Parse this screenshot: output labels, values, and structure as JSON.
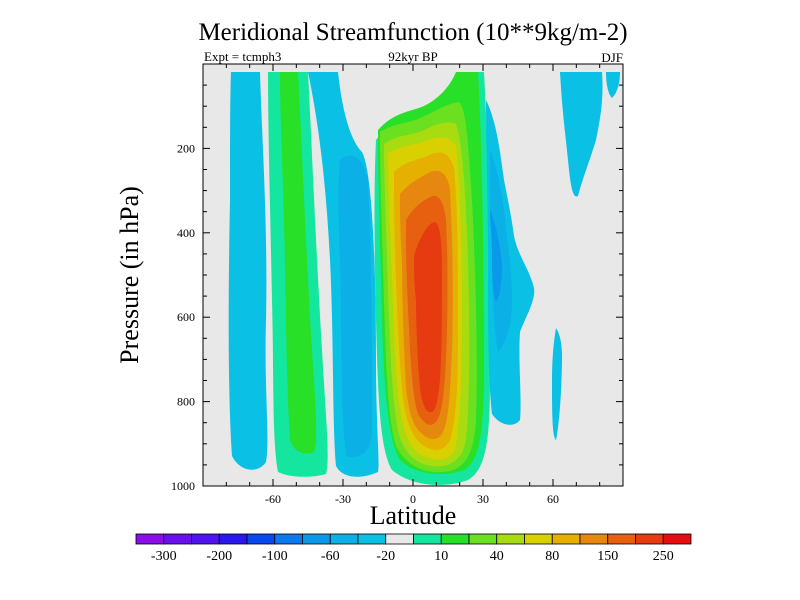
{
  "chart_data": {
    "type": "heatmap",
    "title": "Meridional Streamfunction (10**9kg/m-2)",
    "subtitle_left": "Expt = tcmph3",
    "subtitle_center": "92kyr BP",
    "subtitle_right": "DJF",
    "xlabel": "Latitude",
    "ylabel": "Pressure (in hPa)",
    "xlim": [
      -90,
      90
    ],
    "ylim": [
      1000,
      0
    ],
    "x_ticks": [
      -60,
      -30,
      0,
      30,
      60
    ],
    "y_ticks": [
      200,
      400,
      600,
      800,
      1000
    ],
    "background_color": "#e8e8e8",
    "colorbar": {
      "colors": [
        "#8a0ee8",
        "#6a10ee",
        "#4f14ee",
        "#2a18ee",
        "#0848ee",
        "#0a78ee",
        "#0a98ea",
        "#0ab0e6",
        "#0ac0e4",
        "#e8e8e8",
        "#14e6a0",
        "#28e028",
        "#6ae020",
        "#a8dc10",
        "#d8d000",
        "#e6b000",
        "#e68810",
        "#e66010",
        "#e63a10",
        "#e60e0e"
      ],
      "labels": [
        "-300",
        "-200",
        "-100",
        "-60",
        "-20",
        "10",
        "40",
        "80",
        "150",
        "250"
      ],
      "label_after_box": [
        0,
        2,
        4,
        6,
        8,
        10,
        12,
        14,
        16,
        18
      ]
    },
    "features": [
      {
        "sign": "negative",
        "lat_range": [
          -82,
          -68
        ],
        "pressure_range": [
          30,
          940
        ],
        "value": -20
      },
      {
        "sign": "positive",
        "lat_range": [
          -60,
          -40
        ],
        "pressure_range": [
          10,
          980
        ],
        "value": 40
      },
      {
        "sign": "negative",
        "lat_range": [
          -35,
          -15
        ],
        "pressure_range": [
          10,
          985
        ],
        "value": -40
      },
      {
        "sign": "positive",
        "lat_range": [
          -15,
          35
        ],
        "pressure_range": [
          10,
          990
        ],
        "value": 290
      },
      {
        "sign": "negative",
        "lat_range": [
          30,
          48
        ],
        "pressure_range": [
          30,
          860
        ],
        "value": -60
      },
      {
        "sign": "negative",
        "lat_range": [
          58,
          82
        ],
        "pressure_range": [
          10,
          420
        ],
        "value": -20
      }
    ]
  }
}
